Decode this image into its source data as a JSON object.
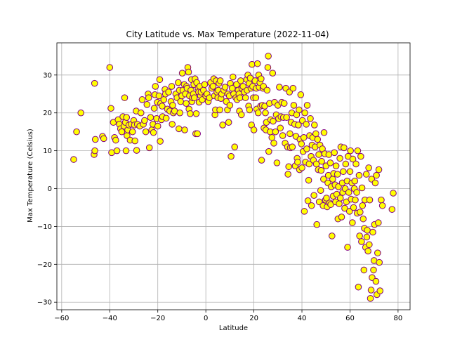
{
  "chart_data": {
    "type": "scatter",
    "title": "City Latitude vs. Max Temperature (2022-11-04)",
    "xlabel": "Latitude",
    "ylabel": "Max Temperature (Celsius)",
    "xlim": [
      -62,
      85
    ],
    "ylim": [
      -32,
      38.5
    ],
    "xticks": [
      -60,
      -40,
      -20,
      0,
      20,
      40,
      60,
      80
    ],
    "yticks": [
      -30,
      -20,
      -10,
      0,
      10,
      20,
      30
    ],
    "grid": true,
    "legend": "none",
    "marker_fill": "#ffff00",
    "marker_edge": "#800080",
    "points": [
      [
        -55,
        7.7
      ],
      [
        -53.8,
        15
      ],
      [
        -52,
        20
      ],
      [
        -46.3,
        27.8
      ],
      [
        -46.5,
        9
      ],
      [
        -46.2,
        10
      ],
      [
        -46,
        13
      ],
      [
        -43,
        13.8
      ],
      [
        -42.5,
        13.2
      ],
      [
        -40,
        32
      ],
      [
        -39.5,
        21.2
      ],
      [
        -39.2,
        9.5
      ],
      [
        -38.5,
        17.5
      ],
      [
        -38,
        13.5
      ],
      [
        -37.5,
        12.8
      ],
      [
        -37,
        10
      ],
      [
        -36.5,
        18.2
      ],
      [
        -36,
        17
      ],
      [
        -35.5,
        15.8
      ],
      [
        -35,
        15
      ],
      [
        -34.5,
        19
      ],
      [
        -34,
        16.5
      ],
      [
        -33.8,
        24
      ],
      [
        -33.5,
        17.5
      ],
      [
        -33.2,
        10
      ],
      [
        -33,
        18.8
      ],
      [
        -32.8,
        14
      ],
      [
        -32.5,
        15.5
      ],
      [
        -32,
        16.8
      ],
      [
        -31.5,
        12.8
      ],
      [
        -31,
        17
      ],
      [
        -30.5,
        15
      ],
      [
        -30,
        18
      ],
      [
        -29.7,
        16.8
      ],
      [
        -29.5,
        12.6
      ],
      [
        -29,
        20.5
      ],
      [
        -28.8,
        10.1
      ],
      [
        -28.5,
        17
      ],
      [
        -27.5,
        16.5
      ],
      [
        -27,
        20
      ],
      [
        -26.5,
        23.5
      ],
      [
        -26,
        17
      ],
      [
        -25.5,
        18
      ],
      [
        -25,
        15
      ],
      [
        -24.5,
        22.2
      ],
      [
        -24,
        25
      ],
      [
        -23.8,
        24
      ],
      [
        -23.5,
        10.8
      ],
      [
        -23,
        18.8
      ],
      [
        -22.5,
        15.5
      ],
      [
        -22,
        17
      ],
      [
        -21.8,
        14.8
      ],
      [
        -21.5,
        21.2
      ],
      [
        -21.2,
        24.8
      ],
      [
        -21,
        27
      ],
      [
        -20.5,
        18.5
      ],
      [
        -20.2,
        22.8
      ],
      [
        -20,
        16.5
      ],
      [
        -19.5,
        24.5
      ],
      [
        -19.2,
        28.8
      ],
      [
        -19,
        12.5
      ],
      [
        -18.8,
        22.5
      ],
      [
        -18.5,
        18.2
      ],
      [
        -18.2,
        21.8
      ],
      [
        -18,
        19
      ],
      [
        -17.5,
        23.5
      ],
      [
        -17,
        26.2
      ],
      [
        -16.8,
        25
      ],
      [
        -16.5,
        18.6
      ],
      [
        -16,
        21
      ],
      [
        -15.5,
        25.5
      ],
      [
        -15,
        20.5
      ],
      [
        -14.5,
        23
      ],
      [
        -14.2,
        27
      ],
      [
        -14,
        17
      ],
      [
        -13.8,
        22
      ],
      [
        -13.5,
        20
      ],
      [
        -13,
        20.5
      ],
      [
        -12.5,
        25
      ],
      [
        -12,
        24
      ],
      [
        -11.5,
        28
      ],
      [
        -11.2,
        15.8
      ],
      [
        -11,
        26
      ],
      [
        -10.8,
        20
      ],
      [
        -10.5,
        23
      ],
      [
        -10,
        24.5
      ],
      [
        -9.8,
        30.5
      ],
      [
        -9.5,
        26
      ],
      [
        -9,
        27.5
      ],
      [
        -8.8,
        15.5
      ],
      [
        -8.5,
        25
      ],
      [
        -8.2,
        22.5
      ],
      [
        -8,
        27
      ],
      [
        -7.8,
        26.5
      ],
      [
        -7.5,
        32
      ],
      [
        -7.2,
        30.8
      ],
      [
        -7,
        21
      ],
      [
        -6.8,
        24.5
      ],
      [
        -6.5,
        19.8
      ],
      [
        -6.2,
        26
      ],
      [
        -6,
        28.8
      ],
      [
        -5.8,
        23
      ],
      [
        -5.5,
        24
      ],
      [
        -5.2,
        25
      ],
      [
        -5,
        27.5
      ],
      [
        -4.8,
        24
      ],
      [
        -4.5,
        29
      ],
      [
        -4.2,
        14.5
      ],
      [
        -4,
        19.8
      ],
      [
        -3.8,
        28
      ],
      [
        -3.5,
        14.5
      ],
      [
        -3.2,
        26.5
      ],
      [
        -3,
        25.5
      ],
      [
        -2.8,
        22.8
      ],
      [
        -2.5,
        27
      ],
      [
        -2.2,
        24.5
      ],
      [
        -2,
        25.5
      ],
      [
        -1.5,
        23.5
      ],
      [
        -1,
        26
      ],
      [
        -0.5,
        27.5
      ],
      [
        0,
        24.5
      ],
      [
        0.5,
        25
      ],
      [
        1,
        23
      ],
      [
        1.5,
        24
      ],
      [
        2,
        28
      ],
      [
        2.5,
        26.5
      ],
      [
        3,
        27
      ],
      [
        3.3,
        29
      ],
      [
        3.6,
        24.5
      ],
      [
        3.8,
        19.5
      ],
      [
        4,
        20.8
      ],
      [
        4.3,
        28.5
      ],
      [
        4.6,
        25.5
      ],
      [
        5,
        24
      ],
      [
        5.2,
        26
      ],
      [
        5.5,
        27.8
      ],
      [
        5.8,
        20.8
      ],
      [
        6,
        28.5
      ],
      [
        6.3,
        23.8
      ],
      [
        6.6,
        25
      ],
      [
        7,
        16.8
      ],
      [
        7.5,
        26
      ],
      [
        8,
        26.8
      ],
      [
        8.5,
        23
      ],
      [
        9,
        20.8
      ],
      [
        9.2,
        25
      ],
      [
        9.5,
        17.5
      ],
      [
        9.8,
        24.5
      ],
      [
        10,
        22
      ],
      [
        10.2,
        27.8
      ],
      [
        10.5,
        8.5
      ],
      [
        11,
        26.5
      ],
      [
        11.3,
        29.5
      ],
      [
        11.6,
        25
      ],
      [
        12,
        11
      ],
      [
        12.5,
        24
      ],
      [
        12.8,
        27.5
      ],
      [
        13,
        23.5
      ],
      [
        13.5,
        26
      ],
      [
        13.8,
        25
      ],
      [
        14,
        20.5
      ],
      [
        14.2,
        24
      ],
      [
        14.5,
        28.5
      ],
      [
        14.8,
        19.5
      ],
      [
        15,
        26.5
      ],
      [
        15.5,
        27
      ],
      [
        16,
        25.5
      ],
      [
        16.5,
        24
      ],
      [
        17,
        28.8
      ],
      [
        17.2,
        26
      ],
      [
        17.5,
        30
      ],
      [
        17.8,
        21.8
      ],
      [
        18,
        27.8
      ],
      [
        18.2,
        20.8
      ],
      [
        18.5,
        29.2
      ],
      [
        18.8,
        26.5
      ],
      [
        19,
        16.8
      ],
      [
        19.2,
        32.8
      ],
      [
        19.5,
        27
      ],
      [
        19.8,
        24
      ],
      [
        20,
        15.5
      ],
      [
        20.5,
        28.5
      ],
      [
        20.8,
        24
      ],
      [
        21,
        26.5
      ],
      [
        21.2,
        21
      ],
      [
        21.5,
        33
      ],
      [
        21.8,
        20
      ],
      [
        22,
        30
      ],
      [
        22.2,
        26.8
      ],
      [
        22.5,
        28
      ],
      [
        22.8,
        21.8
      ],
      [
        23,
        29
      ],
      [
        23.2,
        7.5
      ],
      [
        23.5,
        22
      ],
      [
        23.8,
        26.5
      ],
      [
        24,
        27
      ],
      [
        24.2,
        16
      ],
      [
        24.5,
        21.8
      ],
      [
        24.8,
        20
      ],
      [
        25,
        15.5
      ],
      [
        25.2,
        17.5
      ],
      [
        25.5,
        26
      ],
      [
        25.8,
        32
      ],
      [
        26,
        35
      ],
      [
        26.2,
        9.8
      ],
      [
        26.5,
        22.5
      ],
      [
        26.8,
        15
      ],
      [
        27,
        18.2
      ],
      [
        27.5,
        13.5
      ],
      [
        27.8,
        30.5
      ],
      [
        28,
        17.8
      ],
      [
        28.3,
        12
      ],
      [
        28.6,
        22.8
      ],
      [
        29,
        15
      ],
      [
        29.3,
        19.5
      ],
      [
        29.6,
        6.8
      ],
      [
        30,
        22
      ],
      [
        30.3,
        18.5
      ],
      [
        30.6,
        26.8
      ],
      [
        31,
        16
      ],
      [
        31.3,
        19
      ],
      [
        31.6,
        22.8
      ],
      [
        32,
        14
      ],
      [
        32.3,
        18.8
      ],
      [
        32.6,
        22.5
      ],
      [
        33,
        12
      ],
      [
        33.3,
        26.5
      ],
      [
        33.6,
        18.8
      ],
      [
        34,
        11
      ],
      [
        34.2,
        3.8
      ],
      [
        34.5,
        5.8
      ],
      [
        34.8,
        25.5
      ],
      [
        35,
        14.5
      ],
      [
        35.2,
        10.8
      ],
      [
        35.5,
        17.5
      ],
      [
        35.8,
        20
      ],
      [
        36,
        11
      ],
      [
        36.3,
        26.5
      ],
      [
        36.6,
        22
      ],
      [
        37,
        17
      ],
      [
        37.2,
        6
      ],
      [
        37.5,
        13.8
      ],
      [
        37.8,
        19.5
      ],
      [
        38,
        8
      ],
      [
        38.2,
        7
      ],
      [
        38.5,
        16.8
      ],
      [
        38.8,
        20.8
      ],
      [
        39,
        5
      ],
      [
        39.2,
        13
      ],
      [
        39.5,
        24.8
      ],
      [
        39.8,
        11.8
      ],
      [
        40,
        5.5
      ],
      [
        40.2,
        18
      ],
      [
        40.5,
        9.8
      ],
      [
        40.8,
        13.5
      ],
      [
        41,
        -6
      ],
      [
        41.2,
        20
      ],
      [
        41.5,
        7
      ],
      [
        41.8,
        17
      ],
      [
        42,
        10.5
      ],
      [
        42.2,
        22
      ],
      [
        42.5,
        -3.2
      ],
      [
        42.8,
        2.2
      ],
      [
        43,
        6.5
      ],
      [
        43.2,
        14
      ],
      [
        43.5,
        18.5
      ],
      [
        43.8,
        8.5
      ],
      [
        44,
        -4.5
      ],
      [
        44.2,
        11.5
      ],
      [
        44.5,
        13.5
      ],
      [
        44.8,
        7.5
      ],
      [
        45,
        -1.8
      ],
      [
        45.2,
        16.8
      ],
      [
        45.5,
        11
      ],
      [
        45.8,
        14.5
      ],
      [
        46,
        6.5
      ],
      [
        46.2,
        -9.5
      ],
      [
        46.5,
        13
      ],
      [
        46.8,
        5
      ],
      [
        47,
        9
      ],
      [
        47.2,
        -3.5
      ],
      [
        47.5,
        11.5
      ],
      [
        47.8,
        -0.5
      ],
      [
        48,
        4.8
      ],
      [
        48.2,
        7.2
      ],
      [
        48.5,
        10.5
      ],
      [
        48.8,
        -4.5
      ],
      [
        49,
        2.5
      ],
      [
        49.2,
        14.8
      ],
      [
        49.5,
        9.2
      ],
      [
        49.8,
        -3
      ],
      [
        50,
        6
      ],
      [
        50.2,
        -2.5
      ],
      [
        50.5,
        -4.8
      ],
      [
        50.8,
        1.5
      ],
      [
        51,
        3.5
      ],
      [
        51.2,
        9
      ],
      [
        51.5,
        -3.8
      ],
      [
        51.8,
        6.8
      ],
      [
        52,
        -4.2
      ],
      [
        52.2,
        0.5
      ],
      [
        52.5,
        -12.5
      ],
      [
        52.8,
        2.5
      ],
      [
        53,
        -2
      ],
      [
        53.2,
        4
      ],
      [
        53.5,
        9.5
      ],
      [
        53.8,
        1
      ],
      [
        54,
        -3.5
      ],
      [
        54.2,
        6
      ],
      [
        54.5,
        -1.5
      ],
      [
        54.8,
        3.8
      ],
      [
        55,
        -8
      ],
      [
        55.2,
        0.5
      ],
      [
        55.5,
        -4
      ],
      [
        55.8,
        8
      ],
      [
        56,
        -2.5
      ],
      [
        56.2,
        11
      ],
      [
        56.5,
        -7.5
      ],
      [
        56.8,
        1.5
      ],
      [
        57,
        -1
      ],
      [
        57.2,
        4.5
      ],
      [
        57.5,
        10.8
      ],
      [
        57.8,
        -5.2
      ],
      [
        58,
        0
      ],
      [
        58.2,
        6.5
      ],
      [
        58.5,
        -3.5
      ],
      [
        58.8,
        2
      ],
      [
        59,
        -15.5
      ],
      [
        59.2,
        8.5
      ],
      [
        59.5,
        -1
      ],
      [
        59.8,
        -6
      ],
      [
        60,
        4.5
      ],
      [
        60.2,
        10
      ],
      [
        60.5,
        -2.8
      ],
      [
        60.8,
        1.5
      ],
      [
        61,
        -9
      ],
      [
        61.2,
        7.8
      ],
      [
        61.5,
        -5
      ],
      [
        61.8,
        0
      ],
      [
        62,
        2
      ],
      [
        62.2,
        -3
      ],
      [
        62.5,
        6.5
      ],
      [
        62.8,
        -1
      ],
      [
        63,
        -6.5
      ],
      [
        63.2,
        10
      ],
      [
        63.5,
        -26
      ],
      [
        63.8,
        3.5
      ],
      [
        64,
        -12.5
      ],
      [
        64.2,
        -6.2
      ],
      [
        64.5,
        8.5
      ],
      [
        64.8,
        -14
      ],
      [
        65,
        0.2
      ],
      [
        65.2,
        -4.5
      ],
      [
        65.5,
        -8
      ],
      [
        65.8,
        -21.5
      ],
      [
        66,
        -10.5
      ],
      [
        66.2,
        -3
      ],
      [
        66.5,
        -15.5
      ],
      [
        66.8,
        3.8
      ],
      [
        67,
        -12.8
      ],
      [
        67.2,
        -11
      ],
      [
        67.5,
        -16.5
      ],
      [
        67.8,
        5.5
      ],
      [
        68,
        -14.8
      ],
      [
        68.2,
        -3
      ],
      [
        68.5,
        -29
      ],
      [
        68.8,
        -26.8
      ],
      [
        69,
        2.5
      ],
      [
        69.2,
        -23.5
      ],
      [
        69.5,
        -11.5
      ],
      [
        69.8,
        -21.5
      ],
      [
        70,
        -19
      ],
      [
        70.2,
        -9.5
      ],
      [
        70.5,
        1.5
      ],
      [
        70.8,
        -24.5
      ],
      [
        71,
        3.5
      ],
      [
        71.2,
        -28
      ],
      [
        71.5,
        -17
      ],
      [
        71.8,
        -9
      ],
      [
        72,
        5
      ],
      [
        72.2,
        -19.5
      ],
      [
        72.5,
        -27
      ],
      [
        73,
        -3
      ],
      [
        73.5,
        -4.5
      ],
      [
        77.5,
        -5.5
      ],
      [
        78,
        -1.2
      ]
    ]
  }
}
